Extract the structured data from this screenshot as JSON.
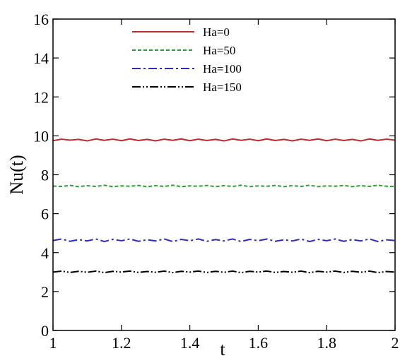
{
  "chart_data": {
    "type": "line",
    "xlabel": "t",
    "ylabel": "Nu(t)",
    "xlim": [
      1,
      2
    ],
    "ylim": [
      0,
      16
    ],
    "xticks": [
      1,
      1.2,
      1.4,
      1.6,
      1.8,
      2
    ],
    "xtick_labels": [
      "1",
      "1.2",
      "1.4",
      "1.6",
      "1.8",
      "2"
    ],
    "yticks": [
      0,
      2,
      4,
      6,
      8,
      10,
      12,
      14,
      16
    ],
    "ytick_labels": [
      "0",
      "2",
      "4",
      "6",
      "8",
      "10",
      "12",
      "14",
      "16"
    ],
    "grid": false,
    "legend_position": "top-center",
    "x": [
      1.0,
      1.025,
      1.05,
      1.075,
      1.1,
      1.125,
      1.15,
      1.175,
      1.2,
      1.225,
      1.25,
      1.275,
      1.3,
      1.325,
      1.35,
      1.375,
      1.4,
      1.425,
      1.45,
      1.475,
      1.5,
      1.525,
      1.55,
      1.575,
      1.6,
      1.625,
      1.65,
      1.675,
      1.7,
      1.725,
      1.75,
      1.775,
      1.8,
      1.825,
      1.85,
      1.875,
      1.9,
      1.925,
      1.95,
      1.975,
      2.0
    ],
    "series": [
      {
        "name": "Ha=0",
        "color": "#c0282d",
        "style": "solid",
        "values": [
          9.75,
          9.83,
          9.78,
          9.82,
          9.74,
          9.84,
          9.77,
          9.83,
          9.75,
          9.84,
          9.76,
          9.82,
          9.74,
          9.83,
          9.77,
          9.84,
          9.75,
          9.83,
          9.76,
          9.82,
          9.74,
          9.84,
          9.77,
          9.83,
          9.75,
          9.84,
          9.76,
          9.82,
          9.74,
          9.83,
          9.77,
          9.84,
          9.75,
          9.83,
          9.76,
          9.82,
          9.74,
          9.84,
          9.77,
          9.83,
          9.78
        ]
      },
      {
        "name": "Ha=50",
        "color": "#2ca02c",
        "style": "dashed",
        "values": [
          7.42,
          7.4,
          7.45,
          7.39,
          7.44,
          7.4,
          7.46,
          7.39,
          7.43,
          7.41,
          7.45,
          7.39,
          7.44,
          7.4,
          7.46,
          7.39,
          7.43,
          7.41,
          7.45,
          7.39,
          7.44,
          7.4,
          7.46,
          7.39,
          7.43,
          7.41,
          7.45,
          7.39,
          7.44,
          7.4,
          7.46,
          7.39,
          7.43,
          7.41,
          7.45,
          7.39,
          7.44,
          7.4,
          7.46,
          7.41,
          7.4
        ]
      },
      {
        "name": "Ha=100",
        "color": "#2b2bc0",
        "style": "dash-dot",
        "values": [
          4.62,
          4.7,
          4.58,
          4.67,
          4.6,
          4.7,
          4.57,
          4.68,
          4.61,
          4.7,
          4.58,
          4.66,
          4.6,
          4.7,
          4.57,
          4.68,
          4.61,
          4.7,
          4.58,
          4.67,
          4.6,
          4.7,
          4.57,
          4.68,
          4.61,
          4.7,
          4.58,
          4.66,
          4.6,
          4.7,
          4.57,
          4.68,
          4.61,
          4.7,
          4.58,
          4.67,
          4.6,
          4.7,
          4.57,
          4.66,
          4.62
        ]
      },
      {
        "name": "Ha=150",
        "color": "#000000",
        "style": "dash-dot-dot",
        "values": [
          3.0,
          3.05,
          2.98,
          3.04,
          2.99,
          3.05,
          2.97,
          3.04,
          3.0,
          3.05,
          2.98,
          3.03,
          2.99,
          3.05,
          2.97,
          3.04,
          3.0,
          3.05,
          2.98,
          3.04,
          2.99,
          3.05,
          2.97,
          3.04,
          3.0,
          3.05,
          2.98,
          3.03,
          2.99,
          3.05,
          2.97,
          3.04,
          3.0,
          3.05,
          2.98,
          3.04,
          2.99,
          3.05,
          2.97,
          3.03,
          3.0
        ]
      }
    ]
  }
}
